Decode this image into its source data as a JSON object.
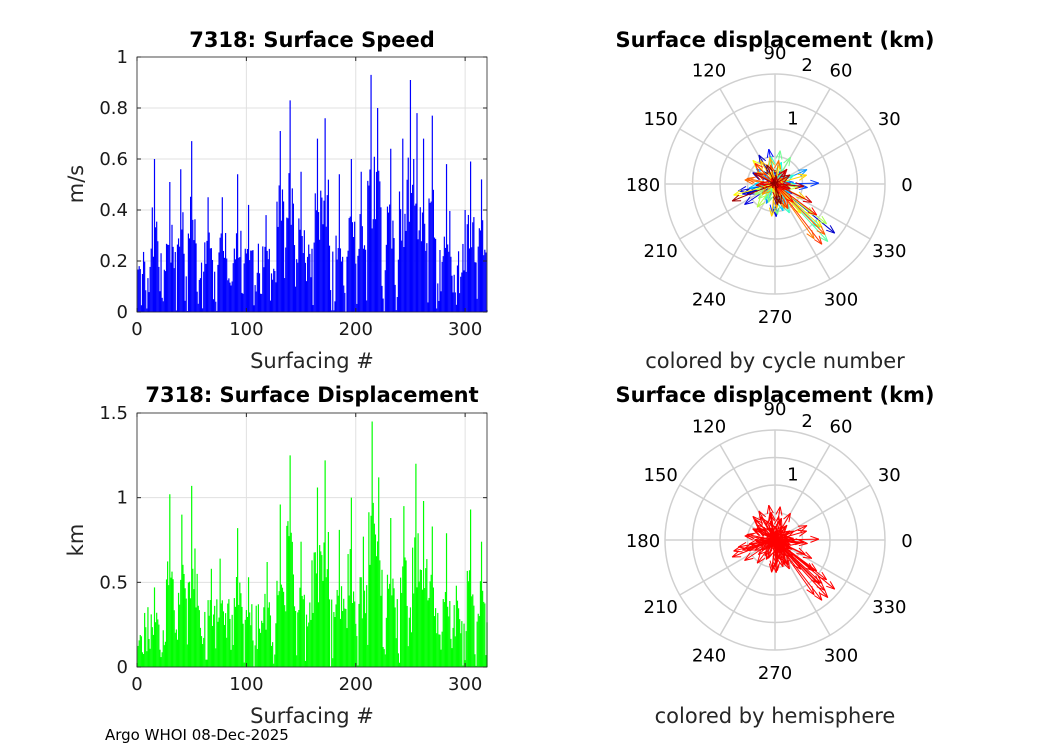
{
  "figure": {
    "footer": "Argo WHOI 08-Dec-2025"
  },
  "chart_data": [
    {
      "id": "speed",
      "type": "bar",
      "title": "7318: Surface Speed",
      "xlabel": "Surfacing #",
      "ylabel": "m/s",
      "xlim": [
        0,
        320
      ],
      "ylim": [
        0,
        1
      ],
      "xticks": [
        0,
        100,
        200,
        300
      ],
      "yticks": [
        0,
        0.2,
        0.4,
        0.6,
        0.8,
        1
      ],
      "ytick_labels": [
        "0",
        "0.2",
        "0.4",
        "0.6",
        "0.8",
        "1"
      ],
      "color": "#0000ff",
      "grid": true,
      "n_points": 320,
      "peaks": [
        {
          "x": 16,
          "y": 0.6
        },
        {
          "x": 30,
          "y": 0.51
        },
        {
          "x": 40,
          "y": 0.56
        },
        {
          "x": 50,
          "y": 0.67
        },
        {
          "x": 65,
          "y": 0.45
        },
        {
          "x": 78,
          "y": 0.45
        },
        {
          "x": 92,
          "y": 0.54
        },
        {
          "x": 102,
          "y": 0.42
        },
        {
          "x": 118,
          "y": 0.38
        },
        {
          "x": 131,
          "y": 0.71
        },
        {
          "x": 140,
          "y": 0.83
        },
        {
          "x": 150,
          "y": 0.55
        },
        {
          "x": 165,
          "y": 0.68
        },
        {
          "x": 172,
          "y": 0.76
        },
        {
          "x": 185,
          "y": 0.54
        },
        {
          "x": 196,
          "y": 0.6
        },
        {
          "x": 205,
          "y": 0.55
        },
        {
          "x": 214,
          "y": 0.93
        },
        {
          "x": 220,
          "y": 0.8
        },
        {
          "x": 232,
          "y": 0.64
        },
        {
          "x": 243,
          "y": 0.68
        },
        {
          "x": 250,
          "y": 0.91
        },
        {
          "x": 256,
          "y": 0.78
        },
        {
          "x": 262,
          "y": 0.68
        },
        {
          "x": 270,
          "y": 0.77
        },
        {
          "x": 283,
          "y": 0.58
        },
        {
          "x": 300,
          "y": 0.4
        },
        {
          "x": 305,
          "y": 0.59
        },
        {
          "x": 315,
          "y": 0.52
        }
      ]
    },
    {
      "id": "displacement",
      "type": "bar",
      "title": "7318: Surface Displacement",
      "xlabel": "Surfacing #",
      "ylabel": "km",
      "xlim": [
        0,
        320
      ],
      "ylim": [
        0,
        1.5
      ],
      "xticks": [
        0,
        100,
        200,
        300
      ],
      "yticks": [
        0,
        0.5,
        1,
        1.5
      ],
      "ytick_labels": [
        "0",
        "0.5",
        "1",
        "1.5"
      ],
      "color": "#00ff00",
      "grid": true,
      "n_points": 320,
      "peaks": [
        {
          "x": 16,
          "y": 0.47
        },
        {
          "x": 30,
          "y": 1.02
        },
        {
          "x": 41,
          "y": 0.9
        },
        {
          "x": 50,
          "y": 1.07
        },
        {
          "x": 55,
          "y": 0.55
        },
        {
          "x": 68,
          "y": 0.58
        },
        {
          "x": 76,
          "y": 0.64
        },
        {
          "x": 92,
          "y": 0.82
        },
        {
          "x": 102,
          "y": 0.53
        },
        {
          "x": 119,
          "y": 0.62
        },
        {
          "x": 131,
          "y": 0.96
        },
        {
          "x": 140,
          "y": 1.25
        },
        {
          "x": 150,
          "y": 0.74
        },
        {
          "x": 160,
          "y": 0.63
        },
        {
          "x": 165,
          "y": 1.06
        },
        {
          "x": 172,
          "y": 1.22
        },
        {
          "x": 185,
          "y": 0.81
        },
        {
          "x": 196,
          "y": 1.0
        },
        {
          "x": 207,
          "y": 0.77
        },
        {
          "x": 215,
          "y": 1.45
        },
        {
          "x": 221,
          "y": 1.12
        },
        {
          "x": 232,
          "y": 0.88
        },
        {
          "x": 244,
          "y": 0.95
        },
        {
          "x": 255,
          "y": 1.2
        },
        {
          "x": 262,
          "y": 0.98
        },
        {
          "x": 270,
          "y": 0.83
        },
        {
          "x": 283,
          "y": 0.79
        },
        {
          "x": 292,
          "y": 0.48
        },
        {
          "x": 305,
          "y": 0.93
        },
        {
          "x": 315,
          "y": 0.74
        }
      ]
    },
    {
      "id": "polar_cycle",
      "type": "polar",
      "title": "Surface displacement (km)",
      "caption": "colored by cycle number",
      "angle_ticks": [
        "0",
        "30",
        "60",
        "90",
        "120",
        "150",
        "180",
        "210",
        "240",
        "270",
        "300",
        "330"
      ],
      "radial_ticks": [
        "1",
        "2"
      ],
      "rlim": [
        0,
        2
      ],
      "color_mode": "cycle",
      "arrow_count": 150
    },
    {
      "id": "polar_hemisphere",
      "type": "polar",
      "title": "Surface displacement (km)",
      "caption": "colored by hemisphere",
      "angle_ticks": [
        "0",
        "30",
        "60",
        "90",
        "120",
        "150",
        "180",
        "210",
        "240",
        "270",
        "300",
        "330"
      ],
      "radial_ticks": [
        "1",
        "2"
      ],
      "rlim": [
        0,
        2
      ],
      "color_mode": "hemisphere",
      "color": "#ff0000",
      "arrow_count": 150
    }
  ]
}
